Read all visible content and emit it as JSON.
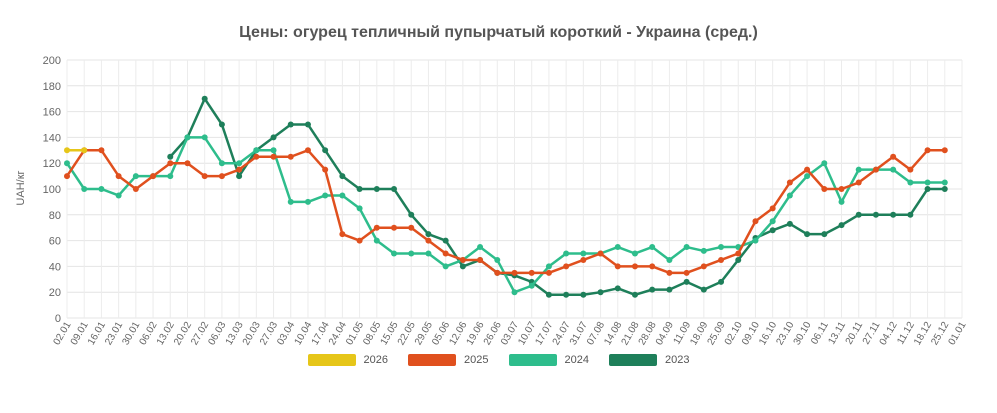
{
  "chart_data": {
    "type": "line",
    "title": "Цены: огурец тепличный пупырчатый короткий - Украина (сред.)",
    "ylabel": "UAH/кг",
    "xlabel": "",
    "ylim": [
      0,
      200
    ],
    "yticks": [
      0,
      20,
      40,
      60,
      80,
      100,
      120,
      140,
      160,
      180,
      200
    ],
    "grid": true,
    "legend_position": "bottom",
    "categories": [
      "02.01",
      "09.01",
      "16.01",
      "23.01",
      "30.01",
      "06.02",
      "13.02",
      "20.02",
      "27.02",
      "06.03",
      "13.03",
      "20.03",
      "27.03",
      "03.04",
      "10.04",
      "17.04",
      "24.04",
      "01.05",
      "08.05",
      "15.05",
      "22.05",
      "29.05",
      "05.06",
      "12.06",
      "19.06",
      "26.06",
      "03.07",
      "10.07",
      "17.07",
      "24.07",
      "31.07",
      "07.08",
      "14.08",
      "21.08",
      "28.08",
      "04.09",
      "11.09",
      "18.09",
      "25.09",
      "02.10",
      "09.10",
      "16.10",
      "23.10",
      "30.10",
      "06.11",
      "13.11",
      "20.11",
      "27.11",
      "04.12",
      "11.12",
      "18.12",
      "25.12",
      "01.01"
    ],
    "series": [
      {
        "name": "2026",
        "color": "#e6c619",
        "values": [
          130,
          130,
          null,
          null,
          null,
          null,
          null,
          null,
          null,
          null,
          null,
          null,
          null,
          null,
          null,
          null,
          null,
          null,
          null,
          null,
          null,
          null,
          null,
          null,
          null,
          null,
          null,
          null,
          null,
          null,
          null,
          null,
          null,
          null,
          null,
          null,
          null,
          null,
          null,
          null,
          null,
          null,
          null,
          null,
          null,
          null,
          null,
          null,
          null,
          null,
          null,
          null,
          null
        ]
      },
      {
        "name": "2025",
        "color": "#e0501e",
        "values": [
          110,
          130,
          130,
          110,
          100,
          110,
          120,
          120,
          110,
          110,
          115,
          125,
          125,
          125,
          130,
          115,
          65,
          60,
          70,
          70,
          70,
          60,
          50,
          45,
          45,
          35,
          35,
          35,
          35,
          40,
          45,
          50,
          40,
          40,
          40,
          35,
          35,
          40,
          45,
          50,
          75,
          85,
          105,
          115,
          100,
          100,
          105,
          115,
          125,
          115,
          130,
          130,
          null
        ]
      },
      {
        "name": "2024",
        "color": "#2ebd8c",
        "values": [
          120,
          100,
          100,
          95,
          110,
          110,
          110,
          140,
          140,
          120,
          120,
          130,
          130,
          90,
          90,
          95,
          95,
          85,
          60,
          50,
          50,
          50,
          40,
          45,
          55,
          45,
          20,
          25,
          40,
          50,
          50,
          50,
          55,
          50,
          55,
          45,
          55,
          52,
          55,
          55,
          60,
          75,
          95,
          110,
          120,
          90,
          115,
          115,
          115,
          105,
          105,
          105,
          null
        ]
      },
      {
        "name": "2023",
        "color": "#1e7f5a",
        "values": [
          null,
          null,
          null,
          null,
          null,
          null,
          125,
          140,
          170,
          150,
          110,
          130,
          140,
          150,
          150,
          130,
          110,
          100,
          100,
          100,
          80,
          65,
          60,
          40,
          45,
          35,
          33,
          28,
          18,
          18,
          18,
          20,
          23,
          18,
          22,
          22,
          28,
          22,
          28,
          45,
          62,
          68,
          73,
          65,
          65,
          72,
          80,
          80,
          80,
          80,
          100,
          100,
          null
        ]
      }
    ]
  }
}
